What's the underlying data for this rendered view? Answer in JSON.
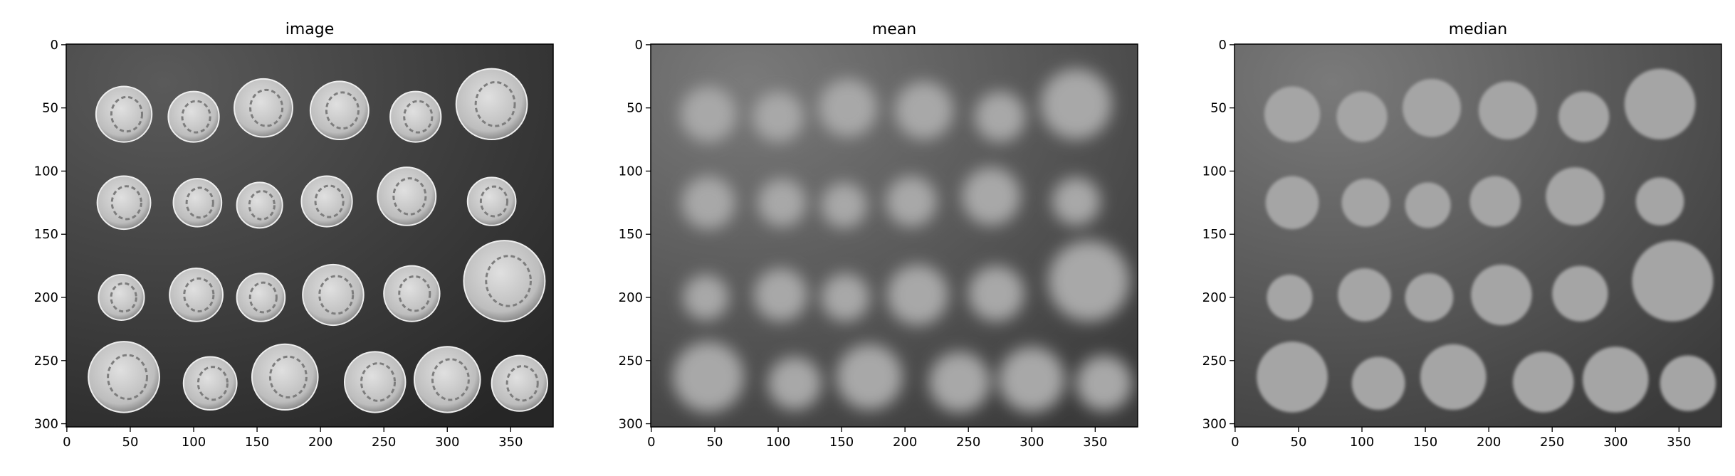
{
  "chart_data": [
    {
      "type": "image",
      "title": "image",
      "xlim": [
        -0.5,
        383.5
      ],
      "ylim": [
        302.5,
        -0.5
      ],
      "xticks": [
        0,
        50,
        100,
        150,
        200,
        250,
        300,
        350
      ],
      "yticks": [
        0,
        50,
        100,
        150,
        200,
        250,
        300
      ]
    },
    {
      "type": "image",
      "title": "mean",
      "xlim": [
        -0.5,
        383.5
      ],
      "ylim": [
        302.5,
        -0.5
      ],
      "xticks": [
        0,
        50,
        100,
        150,
        200,
        250,
        300,
        350
      ],
      "yticks": [
        0,
        50,
        100,
        150,
        200,
        250,
        300
      ]
    },
    {
      "type": "image",
      "title": "median",
      "xlim": [
        -0.5,
        383.5
      ],
      "ylim": [
        302.5,
        -0.5
      ],
      "xticks": [
        0,
        50,
        100,
        150,
        200,
        250,
        300,
        350
      ],
      "yticks": [
        0,
        50,
        100,
        150,
        200,
        250,
        300
      ]
    }
  ]
}
